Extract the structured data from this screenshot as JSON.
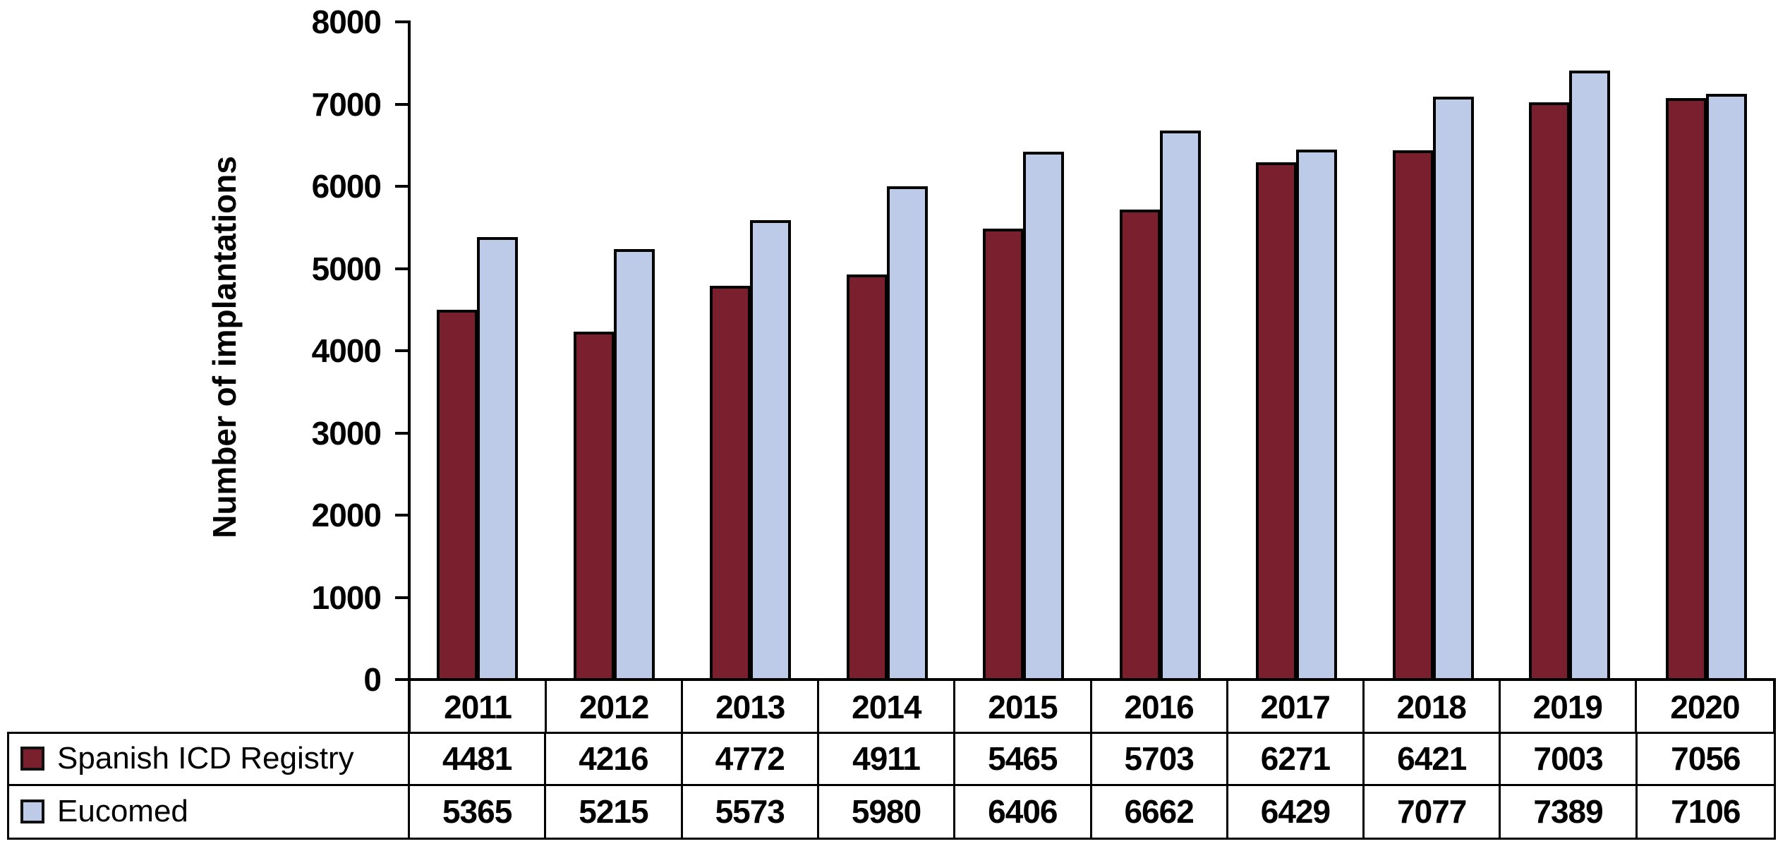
{
  "chart_data": {
    "type": "bar",
    "title": "",
    "xlabel": "",
    "ylabel": "Number of implantations",
    "ylim": [
      0,
      8000
    ],
    "ytick_interval": 1000,
    "ytick_labels": [
      "0",
      "1000",
      "2000",
      "3000",
      "4000",
      "5000",
      "6000",
      "7000",
      "8000"
    ],
    "grid": false,
    "legend_position": "table-left-column-below-chart",
    "bar_border_color": "#000000",
    "categories": [
      "2011",
      "2012",
      "2013",
      "2014",
      "2015",
      "2016",
      "2017",
      "2018",
      "2019",
      "2020"
    ],
    "series": [
      {
        "name": "Spanish ICD Registry",
        "color": "#7A1F2D",
        "values": [
          4481,
          4216,
          4772,
          4911,
          5465,
          5703,
          6271,
          6421,
          7003,
          7056
        ]
      },
      {
        "name": "Eucomed",
        "color": "#BDCBE9",
        "values": [
          5365,
          5215,
          5573,
          5980,
          6406,
          6662,
          6429,
          7077,
          7389,
          7106
        ]
      }
    ]
  }
}
